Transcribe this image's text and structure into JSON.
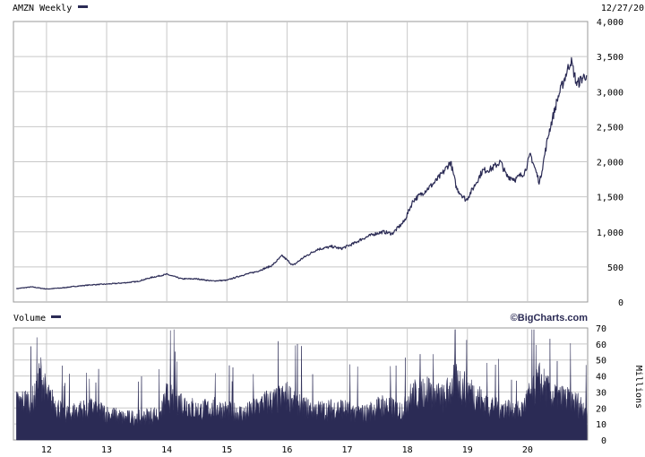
{
  "header": {
    "title": "AMZN Weekly",
    "date": "12/27/20"
  },
  "volume_panel": {
    "title": "Volume",
    "brand": "©BigCharts.com",
    "unit": "Millions"
  },
  "colors": {
    "line": "#2b2b55",
    "grid": "#c8c8c8",
    "frame": "#999999"
  },
  "chart_data": [
    {
      "type": "line",
      "title": "AMZN Weekly",
      "x_axis": {
        "tick_labels": [
          "12",
          "13",
          "14",
          "15",
          "16",
          "17",
          "18",
          "19",
          "20"
        ],
        "range": [
          "2011-06",
          "2020-12"
        ]
      },
      "y_axis": {
        "side": "right",
        "tick_labels": [
          "0",
          "500",
          "1,000",
          "1,500",
          "2,000",
          "2,500",
          "3,000",
          "3,500",
          "4,000"
        ],
        "range": [
          0,
          4000
        ]
      },
      "grid": true,
      "series": [
        {
          "points": [
            [
              2011.5,
              190
            ],
            [
              2011.75,
              215
            ],
            [
              2012.0,
              185
            ],
            [
              2012.25,
              200
            ],
            [
              2012.5,
              225
            ],
            [
              2012.75,
              245
            ],
            [
              2013.0,
              255
            ],
            [
              2013.25,
              270
            ],
            [
              2013.5,
              290
            ],
            [
              2013.75,
              350
            ],
            [
              2014.0,
              395
            ],
            [
              2014.25,
              330
            ],
            [
              2014.5,
              330
            ],
            [
              2014.75,
              300
            ],
            [
              2015.0,
              310
            ],
            [
              2015.25,
              380
            ],
            [
              2015.5,
              435
            ],
            [
              2015.75,
              520
            ],
            [
              2015.92,
              660
            ],
            [
              2016.1,
              520
            ],
            [
              2016.25,
              620
            ],
            [
              2016.5,
              750
            ],
            [
              2016.75,
              790
            ],
            [
              2016.9,
              760
            ],
            [
              2017.1,
              830
            ],
            [
              2017.25,
              900
            ],
            [
              2017.45,
              970
            ],
            [
              2017.6,
              1000
            ],
            [
              2017.75,
              975
            ],
            [
              2017.95,
              1150
            ],
            [
              2018.1,
              1450
            ],
            [
              2018.25,
              1550
            ],
            [
              2018.45,
              1700
            ],
            [
              2018.6,
              1850
            ],
            [
              2018.72,
              2000
            ],
            [
              2018.82,
              1620
            ],
            [
              2018.98,
              1450
            ],
            [
              2019.1,
              1630
            ],
            [
              2019.25,
              1870
            ],
            [
              2019.4,
              1900
            ],
            [
              2019.55,
              2000
            ],
            [
              2019.65,
              1800
            ],
            [
              2019.8,
              1750
            ],
            [
              2019.95,
              1850
            ],
            [
              2020.05,
              2100
            ],
            [
              2020.2,
              1700
            ],
            [
              2020.35,
              2400
            ],
            [
              2020.5,
              2900
            ],
            [
              2020.62,
              3200
            ],
            [
              2020.72,
              3450
            ],
            [
              2020.82,
              3100
            ],
            [
              2020.92,
              3200
            ],
            [
              2020.99,
              3250
            ]
          ]
        }
      ]
    },
    {
      "type": "bar",
      "title": "Volume",
      "y_axis": {
        "side": "right",
        "tick_labels": [
          "0",
          "10",
          "20",
          "30",
          "40",
          "50",
          "60",
          "70"
        ],
        "range": [
          0,
          70
        ],
        "label": "Millions"
      },
      "grid": true,
      "series": [
        {
          "name": "Volume",
          "points": [
            [
              2011.5,
              25
            ],
            [
              2011.8,
              28
            ],
            [
              2011.9,
              45
            ],
            [
              2012.0,
              30
            ],
            [
              2012.3,
              18
            ],
            [
              2012.5,
              20
            ],
            [
              2012.8,
              22
            ],
            [
              2013.0,
              18
            ],
            [
              2013.3,
              15
            ],
            [
              2013.6,
              16
            ],
            [
              2013.9,
              18
            ],
            [
              2014.0,
              30
            ],
            [
              2014.3,
              25
            ],
            [
              2014.5,
              20
            ],
            [
              2014.8,
              22
            ],
            [
              2015.0,
              20
            ],
            [
              2015.3,
              18
            ],
            [
              2015.6,
              25
            ],
            [
              2015.9,
              28
            ],
            [
              2016.0,
              30
            ],
            [
              2016.3,
              22
            ],
            [
              2016.6,
              20
            ],
            [
              2016.9,
              22
            ],
            [
              2017.0,
              20
            ],
            [
              2017.3,
              18
            ],
            [
              2017.6,
              24
            ],
            [
              2017.9,
              20
            ],
            [
              2018.0,
              28
            ],
            [
              2018.3,
              35
            ],
            [
              2018.6,
              28
            ],
            [
              2018.8,
              40
            ],
            [
              2019.0,
              35
            ],
            [
              2019.3,
              25
            ],
            [
              2019.6,
              22
            ],
            [
              2019.9,
              20
            ],
            [
              2020.0,
              28
            ],
            [
              2020.2,
              40
            ],
            [
              2020.4,
              30
            ],
            [
              2020.6,
              28
            ],
            [
              2020.8,
              25
            ],
            [
              2020.99,
              22
            ]
          ]
        }
      ]
    }
  ]
}
